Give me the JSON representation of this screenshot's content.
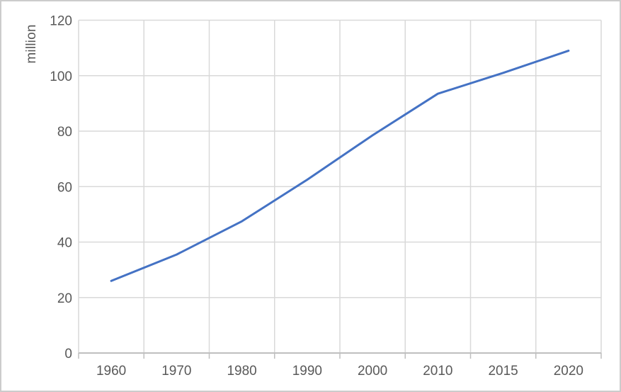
{
  "chart_data": {
    "type": "line",
    "title": "",
    "xlabel": "",
    "ylabel": "million",
    "categories": [
      "1960",
      "1970",
      "1980",
      "1990",
      "2000",
      "2010",
      "2015",
      "2020"
    ],
    "values": [
      26,
      35.5,
      47.5,
      62.5,
      78.5,
      93.5,
      101,
      109
    ],
    "ylim": [
      0,
      120
    ],
    "ytick_step": 20,
    "ytick_labels": [
      "0",
      "20",
      "40",
      "60",
      "80",
      "100",
      "120"
    ],
    "grid": true,
    "legend_position": "none",
    "colors": {
      "line": "#4472C4",
      "gridline": "#D9D9D9",
      "axis": "#BFBFBF",
      "tick_label": "#595959",
      "frame_border": "#CCCCCC",
      "background": "#FFFFFF"
    }
  }
}
